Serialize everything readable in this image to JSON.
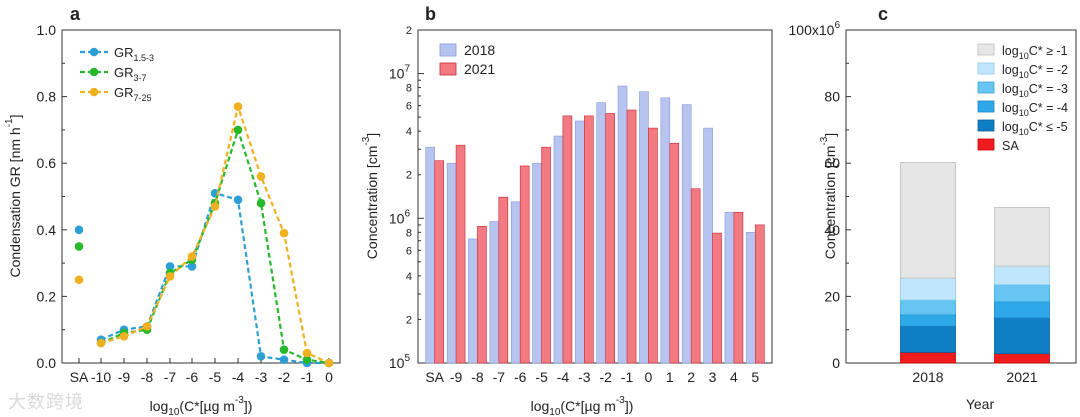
{
  "watermark": "大数跨境",
  "chart_data": [
    {
      "panel": "a",
      "type": "line",
      "ylabel": "Condensation GR [nm h",
      "ylabel_sup": "-1",
      "ylabel_end": "]",
      "xlabel_pre": "log",
      "xlabel_sub": "10",
      "xlabel_mid": "(C*[µg m",
      "xlabel_sup": "-3",
      "xlabel_end": "])",
      "ylim": [
        0,
        1.0
      ],
      "yticks": [
        "0.0",
        "0.2",
        "0.4",
        "0.6",
        "0.8",
        "1.0"
      ],
      "yticks_values": [
        0,
        0.2,
        0.4,
        0.6,
        0.8,
        1.0
      ],
      "categories": [
        "SA",
        "-10",
        "-9",
        "-8",
        "-7",
        "-6",
        "-5",
        "-4",
        "-3",
        "-2",
        "-1",
        "0"
      ],
      "legend_position": "top-left",
      "series": [
        {
          "name": "GR",
          "sub": "1.5-3",
          "color": "#2e9fd4",
          "sa": 0.4,
          "values": [
            null,
            0.07,
            0.1,
            0.11,
            0.29,
            0.29,
            0.51,
            0.49,
            0.02,
            0.01,
            0.0,
            0.0
          ]
        },
        {
          "name": "GR",
          "sub": "3-7",
          "color": "#27b82b",
          "sa": 0.35,
          "values": [
            null,
            0.06,
            0.09,
            0.1,
            0.27,
            0.31,
            0.48,
            0.7,
            0.48,
            0.04,
            0.01,
            0.0
          ]
        },
        {
          "name": "GR",
          "sub": "7-25",
          "color": "#f0b020",
          "sa": 0.25,
          "values": [
            null,
            0.06,
            0.08,
            0.11,
            0.26,
            0.32,
            0.47,
            0.77,
            0.56,
            0.39,
            0.03,
            0.0
          ]
        }
      ]
    },
    {
      "panel": "b",
      "type": "bar",
      "yscale": "log",
      "ylim": [
        100000,
        20000000
      ],
      "ylabel": "Concentration [cm",
      "ylabel_sup": "-3",
      "ylabel_end": "]",
      "xlabel_pre": "log",
      "xlabel_sub": "10",
      "xlabel_mid": "(C*[µg m",
      "xlabel_sup": "-3",
      "xlabel_end": "])",
      "categories": [
        "SA",
        "-9",
        "-8",
        "-7",
        "-6",
        "-5",
        "-4",
        "-3",
        "-2",
        "-1",
        "0",
        "1",
        "2",
        "3",
        "4",
        "5"
      ],
      "legend_position": "top-left",
      "series": [
        {
          "name": "2018",
          "color": "#b7c4f0",
          "stroke": "#8a9ad8",
          "values": [
            3100000,
            2400000,
            720000,
            950000,
            1300000,
            2400000,
            3700000,
            4700000,
            6300000,
            8200000,
            7500000,
            6800000,
            6100000,
            4200000,
            1100000,
            800000
          ]
        },
        {
          "name": "2021",
          "color": "#f27a80",
          "stroke": "#c8283a",
          "values": [
            2500000,
            3200000,
            880000,
            1400000,
            2300000,
            3100000,
            5100000,
            5100000,
            5300000,
            5600000,
            4200000,
            3300000,
            1600000,
            790000,
            1100000,
            900000
          ]
        }
      ],
      "ytick_major_labels": [
        {
          "v": 100000,
          "m": "10",
          "e": "5"
        },
        {
          "v": 1000000,
          "m": "10",
          "e": "6"
        },
        {
          "v": 10000000,
          "m": "10",
          "e": "7"
        }
      ],
      "ytick_minor_labels": [
        {
          "v": 200000,
          "t": "2"
        },
        {
          "v": 400000,
          "t": "4"
        },
        {
          "v": 600000,
          "t": "6"
        },
        {
          "v": 800000,
          "t": "8"
        },
        {
          "v": 2000000,
          "t": "2"
        },
        {
          "v": 4000000,
          "t": "4"
        },
        {
          "v": 6000000,
          "t": "6"
        },
        {
          "v": 8000000,
          "t": "8"
        },
        {
          "v": 20000000,
          "t": "2"
        }
      ]
    },
    {
      "panel": "c",
      "type": "bar",
      "stacked": true,
      "ylim": [
        0,
        100
      ],
      "yticks": [
        "0",
        "20",
        "40",
        "60",
        "80",
        "100x10"
      ],
      "yticks_values": [
        0,
        20,
        40,
        60,
        80,
        100
      ],
      "ytick_top_sup": "6",
      "ylabel": "Concentration [cm",
      "ylabel_sup": "-3",
      "ylabel_end": "]",
      "xlabel": "Year",
      "categories": [
        "2018",
        "2021"
      ],
      "legend_position": "top-right",
      "series": [
        {
          "name_pre": "SA",
          "name": "SA",
          "color": "#ee1c1c",
          "stroke": "#cc0000",
          "values": [
            3.2,
            2.8
          ]
        },
        {
          "name_pre": "log",
          "name_sub": "10",
          "name_post": "C* ≤ -5",
          "color": "#0f7ec4",
          "stroke": "#0a5e99",
          "values": [
            7.8,
            10.7
          ]
        },
        {
          "name_pre": "log",
          "name_sub": "10",
          "name_post": "C* = -4",
          "color": "#2ea8e8",
          "stroke": "#1a86c4",
          "values": [
            3.5,
            4.9
          ]
        },
        {
          "name_pre": "log",
          "name_sub": "10",
          "name_post": "C* = -3",
          "color": "#66c5f2",
          "stroke": "#3aa6d8",
          "values": [
            4.4,
            5.1
          ]
        },
        {
          "name_pre": "log",
          "name_sub": "10",
          "name_post": "C* = -2",
          "color": "#bfe6fa",
          "stroke": "#8fcbea",
          "values": [
            6.6,
            5.6
          ]
        },
        {
          "name_pre": "log",
          "name_sub": "10",
          "name_post": "C* ≥ -1",
          "color": "#e6e6e6",
          "stroke": "#bdbdbd",
          "values": [
            34.7,
            17.6
          ]
        }
      ]
    }
  ]
}
